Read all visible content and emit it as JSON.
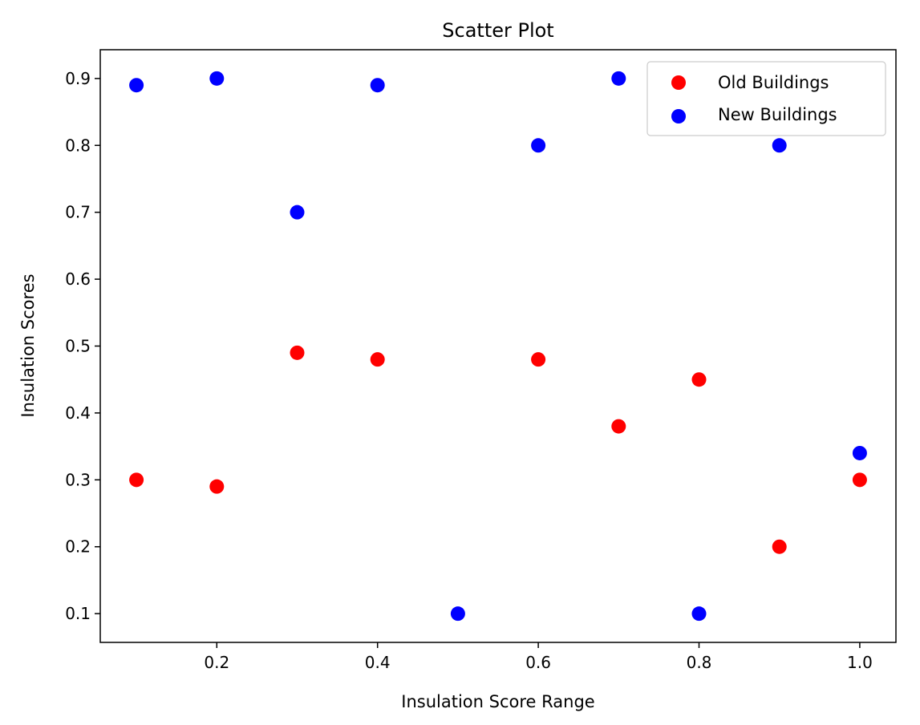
{
  "chart_data": {
    "type": "scatter",
    "title": "Scatter Plot",
    "xlabel": "Insulation Score Range",
    "ylabel": "Insulation Scores",
    "xlim": [
      0.055,
      1.045
    ],
    "ylim": [
      0.057,
      0.943
    ],
    "x_ticks": [
      0.2,
      0.4,
      0.6,
      0.8,
      1.0
    ],
    "x_tick_labels": [
      "0.2",
      "0.4",
      "0.6",
      "0.8",
      "1.0"
    ],
    "y_ticks": [
      0.1,
      0.2,
      0.3,
      0.4,
      0.5,
      0.6,
      0.7,
      0.8,
      0.9
    ],
    "y_tick_labels": [
      "0.1",
      "0.2",
      "0.3",
      "0.4",
      "0.5",
      "0.6",
      "0.7",
      "0.8",
      "0.9"
    ],
    "grid": false,
    "legend_position": "top-right",
    "series": [
      {
        "name": "Old Buildings",
        "color": "#ff0000",
        "x": [
          0.1,
          0.2,
          0.3,
          0.4,
          0.6,
          0.7,
          0.8,
          0.9,
          1.0
        ],
        "y": [
          0.3,
          0.29,
          0.49,
          0.48,
          0.48,
          0.38,
          0.45,
          0.2,
          0.3
        ]
      },
      {
        "name": "New Buildings",
        "color": "#0000ff",
        "x": [
          0.1,
          0.2,
          0.3,
          0.4,
          0.5,
          0.6,
          0.7,
          0.8,
          0.9,
          1.0
        ],
        "y": [
          0.89,
          0.9,
          0.7,
          0.89,
          0.1,
          0.8,
          0.9,
          0.1,
          0.8,
          0.34
        ]
      }
    ]
  }
}
